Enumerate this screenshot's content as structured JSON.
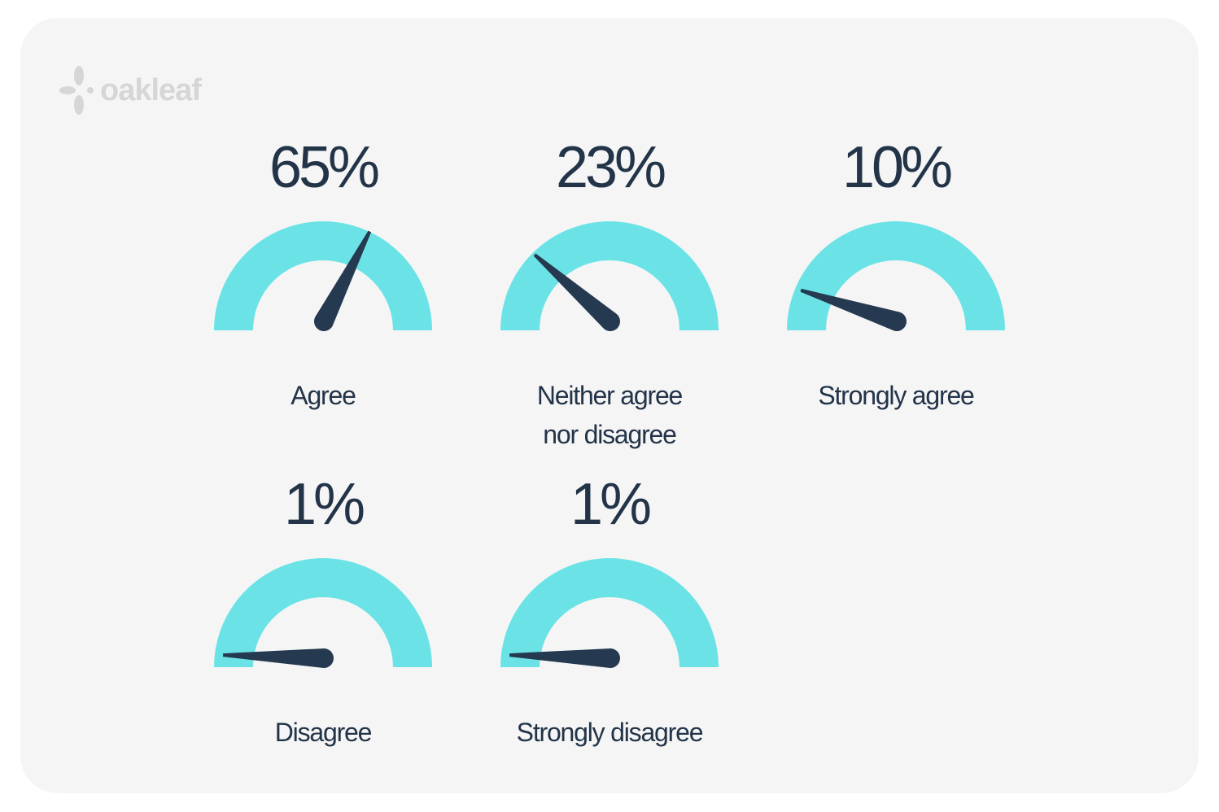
{
  "brand": {
    "name": "oakleaf",
    "logo_color": "#d6d6d6"
  },
  "colors": {
    "arc": "#6be3e6",
    "needle": "#253a51",
    "text": "#233449",
    "card": "#f5f5f5"
  },
  "chart_data": {
    "type": "gauge",
    "scale": [
      0,
      100
    ],
    "unit": "%",
    "gauges": [
      {
        "category": "Agree",
        "value": 65,
        "value_label": "65%",
        "label_lines": [
          "Agree"
        ]
      },
      {
        "category": "Neither agree nor disagree",
        "value": 23,
        "value_label": "23%",
        "label_lines": [
          "Neither agree",
          "nor disagree"
        ]
      },
      {
        "category": "Strongly agree",
        "value": 10,
        "value_label": "10%",
        "label_lines": [
          "Strongly agree"
        ]
      },
      {
        "category": "Disagree",
        "value": 1,
        "value_label": "1%",
        "label_lines": [
          "Disagree"
        ]
      },
      {
        "category": "Strongly disagree",
        "value": 1,
        "value_label": "1%",
        "label_lines": [
          "Strongly disagree"
        ]
      }
    ]
  }
}
